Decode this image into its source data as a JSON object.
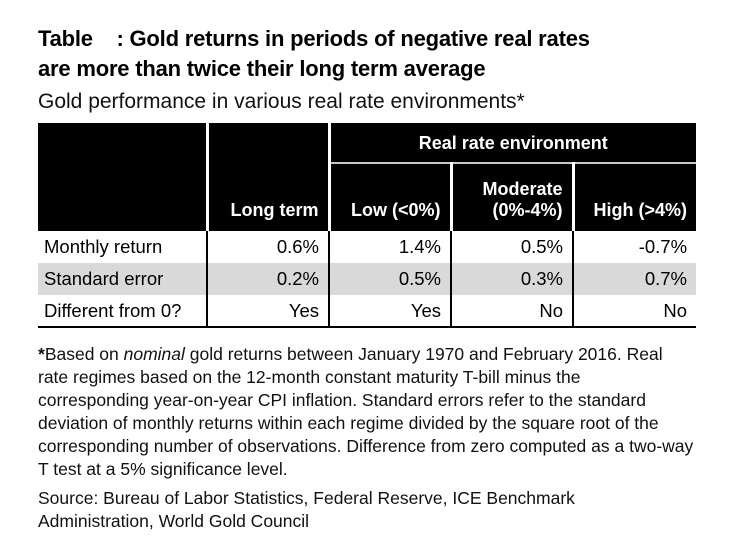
{
  "figure": {
    "title_lines": [
      "Table    : Gold returns in periods of negative real rates",
      "are more than twice their long term average"
    ],
    "subtitle": "Gold performance in various real rate environments*"
  },
  "chart_data": {
    "type": "table",
    "title": "Gold performance in various real rate environments*",
    "group_header": "Real rate environment",
    "row_header_label": "",
    "columns": [
      "Long term",
      "Low (<0%)",
      "Moderate (0%-4%)",
      "High (>4%)"
    ],
    "rows": [
      {
        "label": "Monthly return",
        "values": [
          "0.6%",
          "1.4%",
          "0.5%",
          "-0.7%"
        ],
        "shaded": false
      },
      {
        "label": "Standard error",
        "values": [
          "0.2%",
          "0.5%",
          "0.3%",
          "0.7%"
        ],
        "shaded": true
      },
      {
        "label": "Different from 0?",
        "values": [
          "Yes",
          "Yes",
          "No",
          "No"
        ],
        "shaded": false
      }
    ],
    "layout": {
      "header_style": "black-bar-white-text",
      "grid": "column-dividers-only",
      "shaded_row_index": 1,
      "value_alignment": "right"
    }
  },
  "footnote": {
    "marker": "*",
    "lead": "Based on ",
    "emphasis": "nominal",
    "body": " gold returns between January 1970 and February 2016. Real rate regimes based on the 12-month constant maturity T-bill minus the corresponding year-on-year CPI inflation. Standard errors refer to the standard deviation of monthly returns within each regime divided by the square root of the corresponding number of observations. Difference from zero computed as a two-way T test at a 5% significance level."
  },
  "source": "Source: Bureau of Labor Statistics, Federal Reserve, ICE Benchmark Administration, World Gold Council",
  "colors": {
    "header_bg": "#000000",
    "header_text": "#ffffff",
    "shaded_row_bg": "#d9d9d9",
    "body_text": "#000000",
    "table_divider": "#000000",
    "header_divider": "#ffffff",
    "group_underline": "#c8c8c8"
  }
}
